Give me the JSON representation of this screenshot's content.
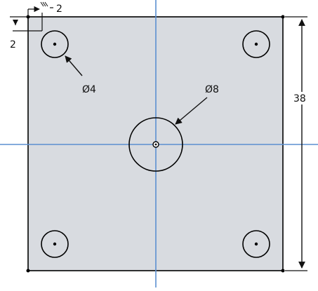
{
  "sketch": {
    "background": "#ffffff",
    "plate_fill": "#d8dbe0",
    "line_color": "#000000",
    "axis_color": "#5b8fd0",
    "arrow_color": "#111111"
  },
  "dimensions": {
    "hole_diameter": "Ø4",
    "center_hole_diameter": "Ø8",
    "plate_side": "38",
    "offset_top": "2",
    "offset_left": "2"
  },
  "features": {
    "corner_holes": 4,
    "center_hole": 1
  }
}
